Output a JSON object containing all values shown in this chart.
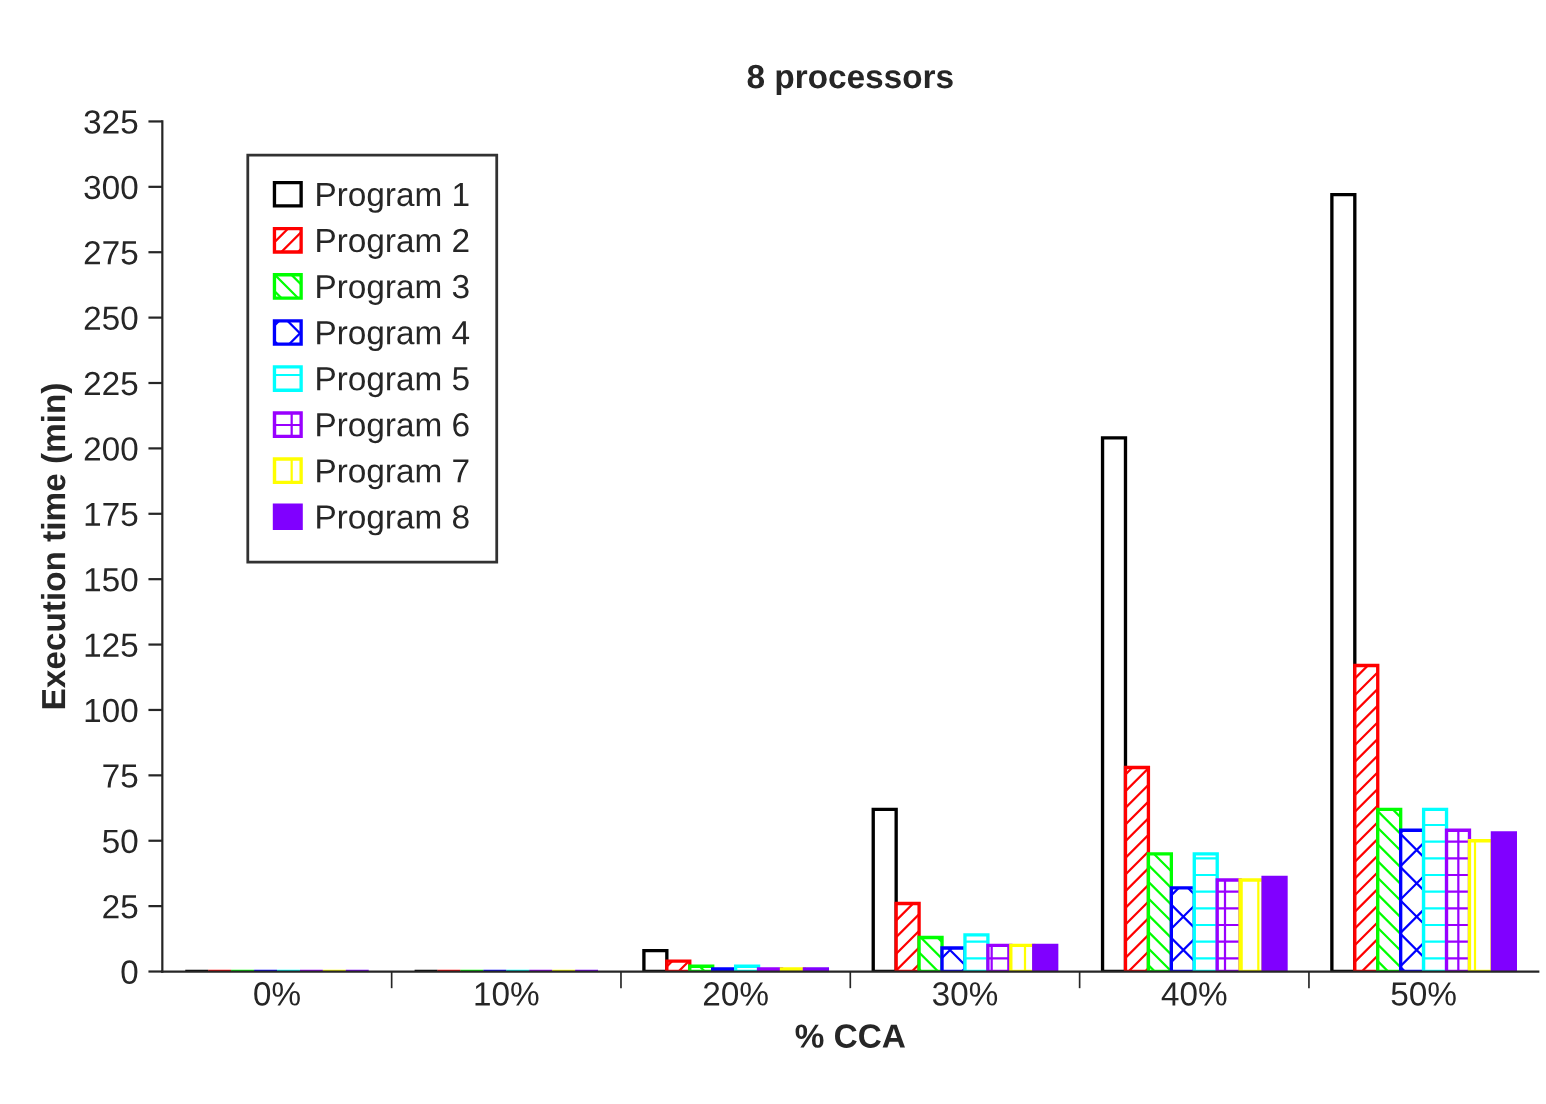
{
  "chart_data": {
    "type": "bar",
    "title": "8 processors",
    "xlabel": "% CCA",
    "ylabel": "Execution time (min)",
    "categories": [
      "0%",
      "10%",
      "20%",
      "30%",
      "40%",
      "50%"
    ],
    "series": [
      {
        "name": "Program 1",
        "color": "#000000",
        "values": [
          0,
          0,
          8,
          62,
          204,
          297
        ]
      },
      {
        "name": "Program 2",
        "color": "#ff0000",
        "values": [
          0,
          0,
          4,
          26,
          78,
          117
        ]
      },
      {
        "name": "Program 3",
        "color": "#00ff00",
        "values": [
          0,
          0,
          2,
          13,
          45,
          62
        ]
      },
      {
        "name": "Program 4",
        "color": "#0000ff",
        "values": [
          0,
          0,
          1,
          9,
          32,
          54
        ]
      },
      {
        "name": "Program 5",
        "color": "#00ffff",
        "values": [
          0,
          0,
          2,
          14,
          45,
          62
        ]
      },
      {
        "name": "Program 6",
        "color": "#9900ff",
        "values": [
          0,
          0,
          1,
          10,
          35,
          54
        ]
      },
      {
        "name": "Program 7",
        "color": "#ffff00",
        "values": [
          0,
          0,
          1,
          10,
          35,
          50
        ]
      },
      {
        "name": "Program 8",
        "color": "#8000ff",
        "values": [
          0,
          0,
          1,
          10,
          36,
          53
        ]
      }
    ],
    "ylim": [
      0,
      325
    ],
    "yticks": [
      0,
      25,
      50,
      75,
      100,
      125,
      150,
      175,
      200,
      225,
      250,
      275,
      300,
      325
    ],
    "grid": false,
    "legend": "top left"
  }
}
